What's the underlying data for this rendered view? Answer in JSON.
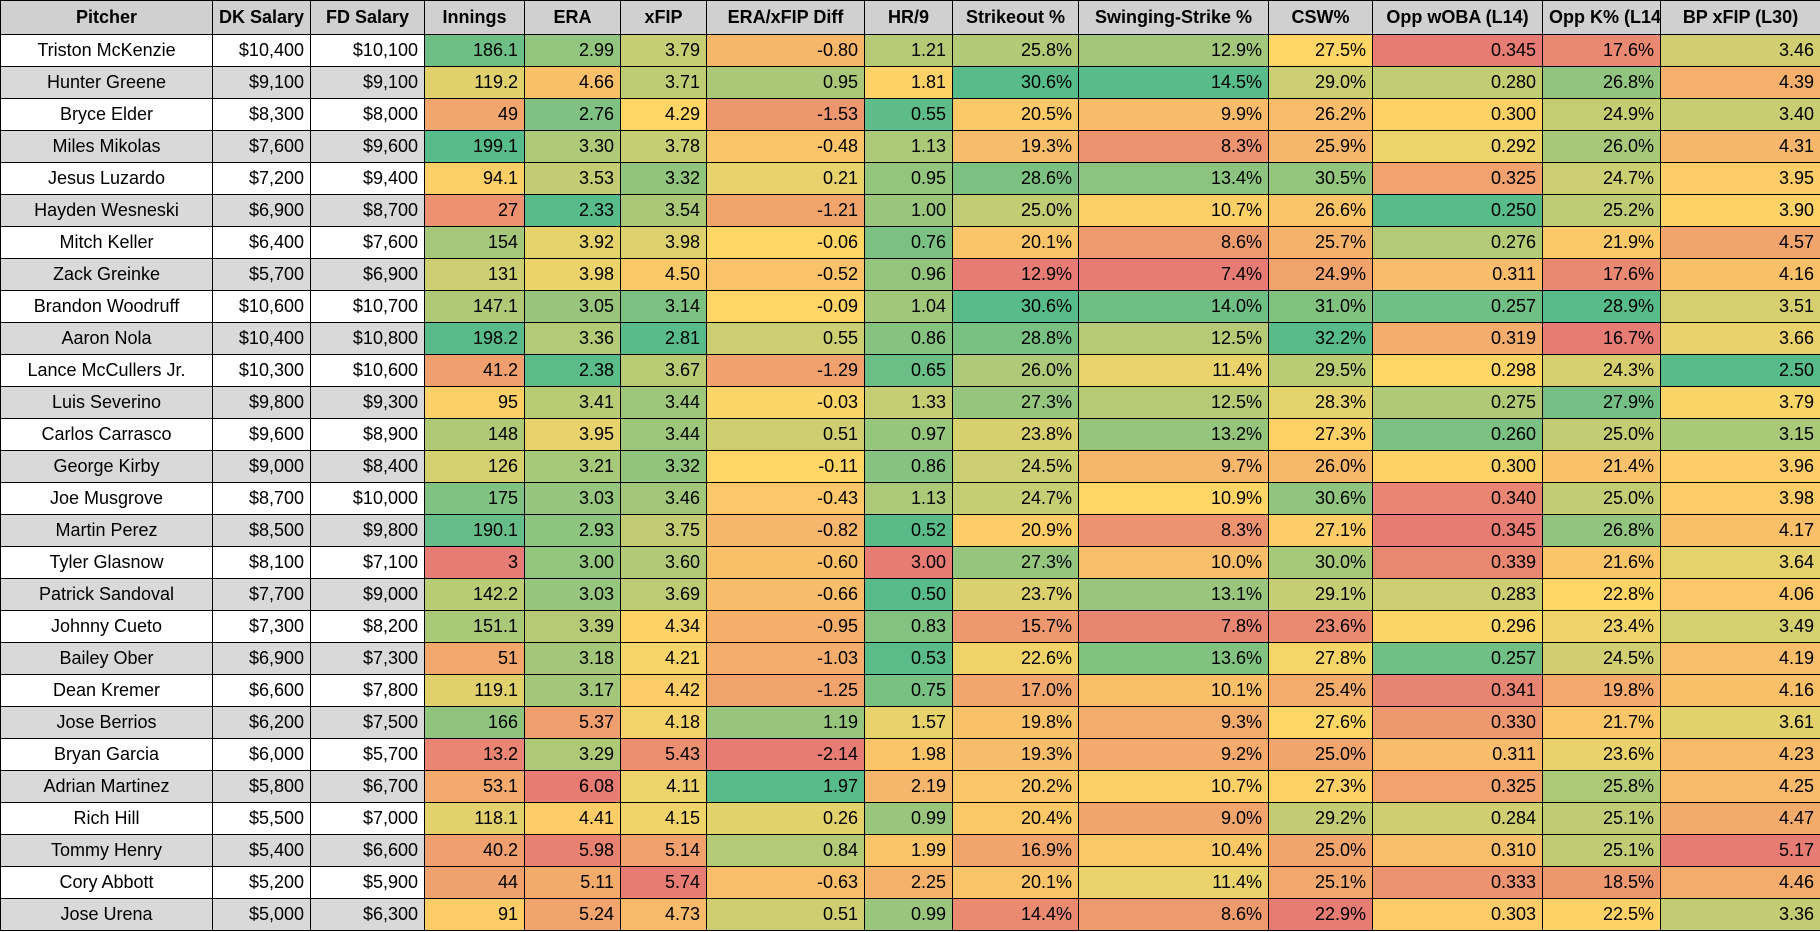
{
  "columns": [
    "Pitcher",
    "DK Salary",
    "FD Salary",
    "Innings",
    "ERA",
    "xFIP",
    "ERA/xFIP Diff",
    "HR/9",
    "Strikeout %",
    "Swinging-Strike %",
    "CSW%",
    "Opp wOBA (L14)",
    "Opp K% (L14)",
    "BP xFIP (L30)"
  ],
  "rows": [
    [
      "Triston McKenzie",
      "$10,400",
      "$10,100",
      "186.1",
      "2.99",
      "3.79",
      "-0.80",
      "1.21",
      "25.8%",
      "12.9%",
      "27.5%",
      "0.345",
      "17.6%",
      "3.46"
    ],
    [
      "Hunter Greene",
      "$9,100",
      "$9,100",
      "119.2",
      "4.66",
      "3.71",
      "0.95",
      "1.81",
      "30.6%",
      "14.5%",
      "29.0%",
      "0.280",
      "26.8%",
      "4.39"
    ],
    [
      "Bryce Elder",
      "$8,300",
      "$8,000",
      "49",
      "2.76",
      "4.29",
      "-1.53",
      "0.55",
      "20.5%",
      "9.9%",
      "26.2%",
      "0.300",
      "24.9%",
      "3.40"
    ],
    [
      "Miles Mikolas",
      "$7,600",
      "$9,600",
      "199.1",
      "3.30",
      "3.78",
      "-0.48",
      "1.13",
      "19.3%",
      "8.3%",
      "25.9%",
      "0.292",
      "26.0%",
      "4.31"
    ],
    [
      "Jesus Luzardo",
      "$7,200",
      "$9,400",
      "94.1",
      "3.53",
      "3.32",
      "0.21",
      "0.95",
      "28.6%",
      "13.4%",
      "30.5%",
      "0.325",
      "24.7%",
      "3.95"
    ],
    [
      "Hayden Wesneski",
      "$6,900",
      "$8,700",
      "27",
      "2.33",
      "3.54",
      "-1.21",
      "1.00",
      "25.0%",
      "10.7%",
      "26.6%",
      "0.250",
      "25.2%",
      "3.90"
    ],
    [
      "Mitch Keller",
      "$6,400",
      "$7,600",
      "154",
      "3.92",
      "3.98",
      "-0.06",
      "0.76",
      "20.1%",
      "8.6%",
      "25.7%",
      "0.276",
      "21.9%",
      "4.57"
    ],
    [
      "Zack Greinke",
      "$5,700",
      "$6,900",
      "131",
      "3.98",
      "4.50",
      "-0.52",
      "0.96",
      "12.9%",
      "7.4%",
      "24.9%",
      "0.311",
      "17.6%",
      "4.16"
    ],
    [
      "Brandon Woodruff",
      "$10,600",
      "$10,700",
      "147.1",
      "3.05",
      "3.14",
      "-0.09",
      "1.04",
      "30.6%",
      "14.0%",
      "31.0%",
      "0.257",
      "28.9%",
      "3.51"
    ],
    [
      "Aaron Nola",
      "$10,400",
      "$10,800",
      "198.2",
      "3.36",
      "2.81",
      "0.55",
      "0.86",
      "28.8%",
      "12.5%",
      "32.2%",
      "0.319",
      "16.7%",
      "3.66"
    ],
    [
      "Lance McCullers Jr.",
      "$10,300",
      "$10,600",
      "41.2",
      "2.38",
      "3.67",
      "-1.29",
      "0.65",
      "26.0%",
      "11.4%",
      "29.5%",
      "0.298",
      "24.3%",
      "2.50"
    ],
    [
      "Luis Severino",
      "$9,800",
      "$9,300",
      "95",
      "3.41",
      "3.44",
      "-0.03",
      "1.33",
      "27.3%",
      "12.5%",
      "28.3%",
      "0.275",
      "27.9%",
      "3.79"
    ],
    [
      "Carlos Carrasco",
      "$9,600",
      "$8,900",
      "148",
      "3.95",
      "3.44",
      "0.51",
      "0.97",
      "23.8%",
      "13.2%",
      "27.3%",
      "0.260",
      "25.0%",
      "3.15"
    ],
    [
      "George Kirby",
      "$9,000",
      "$8,400",
      "126",
      "3.21",
      "3.32",
      "-0.11",
      "0.86",
      "24.5%",
      "9.7%",
      "26.0%",
      "0.300",
      "21.4%",
      "3.96"
    ],
    [
      "Joe Musgrove",
      "$8,700",
      "$10,000",
      "175",
      "3.03",
      "3.46",
      "-0.43",
      "1.13",
      "24.7%",
      "10.9%",
      "30.6%",
      "0.340",
      "25.0%",
      "3.98"
    ],
    [
      "Martin Perez",
      "$8,500",
      "$9,800",
      "190.1",
      "2.93",
      "3.75",
      "-0.82",
      "0.52",
      "20.9%",
      "8.3%",
      "27.1%",
      "0.345",
      "26.8%",
      "4.17"
    ],
    [
      "Tyler Glasnow",
      "$8,100",
      "$7,100",
      "3",
      "3.00",
      "3.60",
      "-0.60",
      "3.00",
      "27.3%",
      "10.0%",
      "30.0%",
      "0.339",
      "21.6%",
      "3.64"
    ],
    [
      "Patrick Sandoval",
      "$7,700",
      "$9,000",
      "142.2",
      "3.03",
      "3.69",
      "-0.66",
      "0.50",
      "23.7%",
      "13.1%",
      "29.1%",
      "0.283",
      "22.8%",
      "4.06"
    ],
    [
      "Johnny Cueto",
      "$7,300",
      "$8,200",
      "151.1",
      "3.39",
      "4.34",
      "-0.95",
      "0.83",
      "15.7%",
      "7.8%",
      "23.6%",
      "0.296",
      "23.4%",
      "3.49"
    ],
    [
      "Bailey Ober",
      "$6,900",
      "$7,300",
      "51",
      "3.18",
      "4.21",
      "-1.03",
      "0.53",
      "22.6%",
      "13.6%",
      "27.8%",
      "0.257",
      "24.5%",
      "4.19"
    ],
    [
      "Dean Kremer",
      "$6,600",
      "$7,800",
      "119.1",
      "3.17",
      "4.42",
      "-1.25",
      "0.75",
      "17.0%",
      "10.1%",
      "25.4%",
      "0.341",
      "19.8%",
      "4.16"
    ],
    [
      "Jose Berrios",
      "$6,200",
      "$7,500",
      "166",
      "5.37",
      "4.18",
      "1.19",
      "1.57",
      "19.8%",
      "9.3%",
      "27.6%",
      "0.330",
      "21.7%",
      "3.61"
    ],
    [
      "Bryan Garcia",
      "$6,000",
      "$5,700",
      "13.2",
      "3.29",
      "5.43",
      "-2.14",
      "1.98",
      "19.3%",
      "9.2%",
      "25.0%",
      "0.311",
      "23.6%",
      "4.23"
    ],
    [
      "Adrian Martinez",
      "$5,800",
      "$6,700",
      "53.1",
      "6.08",
      "4.11",
      "1.97",
      "2.19",
      "20.2%",
      "10.7%",
      "27.3%",
      "0.325",
      "25.8%",
      "4.25"
    ],
    [
      "Rich Hill",
      "$5,500",
      "$7,000",
      "118.1",
      "4.41",
      "4.15",
      "0.26",
      "0.99",
      "20.4%",
      "9.0%",
      "29.2%",
      "0.284",
      "25.1%",
      "4.47"
    ],
    [
      "Tommy Henry",
      "$5,400",
      "$6,600",
      "40.2",
      "5.98",
      "5.14",
      "0.84",
      "1.99",
      "16.9%",
      "10.4%",
      "25.0%",
      "0.310",
      "25.1%",
      "5.17"
    ],
    [
      "Cory Abbott",
      "$5,200",
      "$5,900",
      "44",
      "5.11",
      "5.74",
      "-0.63",
      "2.25",
      "20.1%",
      "11.4%",
      "25.1%",
      "0.333",
      "18.5%",
      "4.46"
    ],
    [
      "Jose Urena",
      "$5,000",
      "$6,300",
      "91",
      "5.24",
      "4.73",
      "0.51",
      "0.99",
      "14.4%",
      "8.6%",
      "22.9%",
      "0.303",
      "22.5%",
      "3.36"
    ]
  ],
  "color_scale": {
    "low": "#e67c73",
    "mid": "#ffd666",
    "high": "#57bb8a",
    "header_bg": "#d0d0d0",
    "stripe_bg": "#d9d9d9"
  }
}
